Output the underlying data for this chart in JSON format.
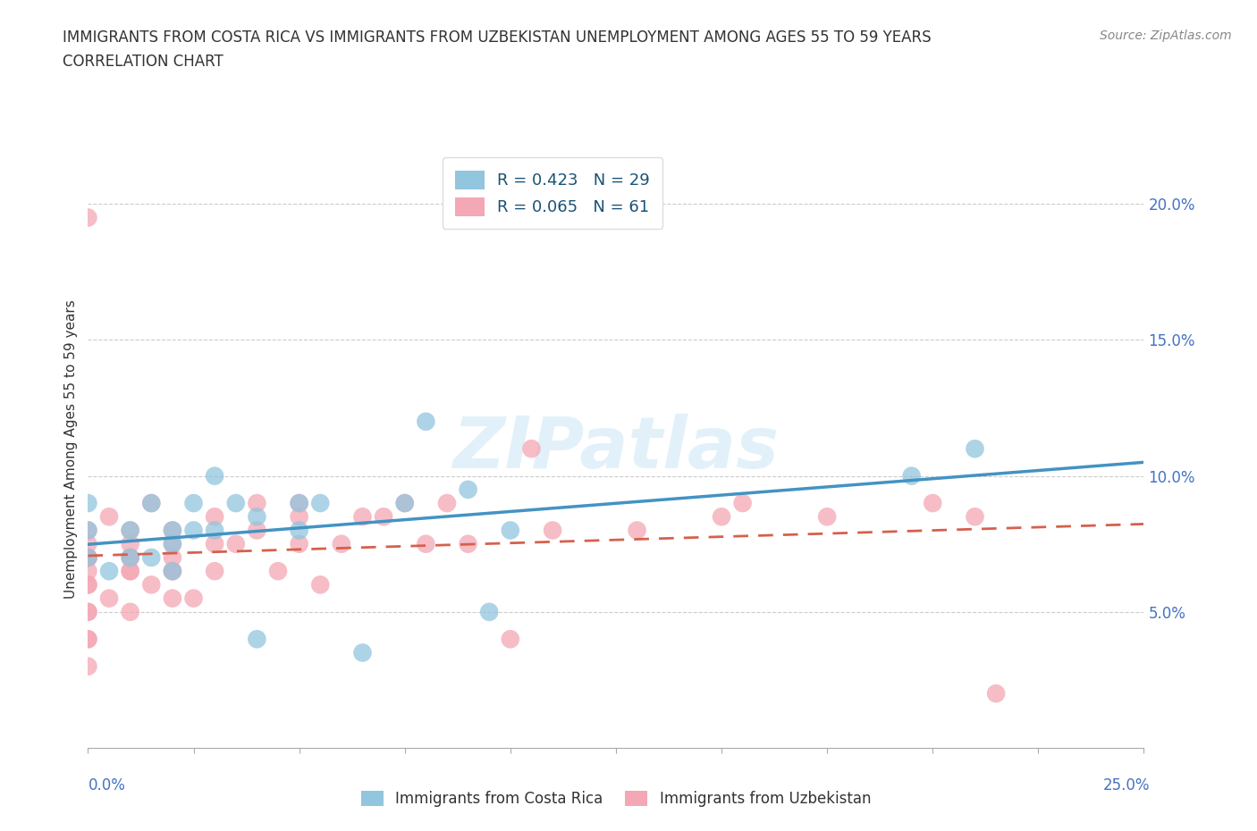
{
  "title_line1": "IMMIGRANTS FROM COSTA RICA VS IMMIGRANTS FROM UZBEKISTAN UNEMPLOYMENT AMONG AGES 55 TO 59 YEARS",
  "title_line2": "CORRELATION CHART",
  "source_text": "Source: ZipAtlas.com",
  "ylabel": "Unemployment Among Ages 55 to 59 years",
  "xlim": [
    0.0,
    0.25
  ],
  "ylim": [
    0.0,
    0.22
  ],
  "yticks": [
    0.05,
    0.1,
    0.15,
    0.2
  ],
  "yticklabels": [
    "5.0%",
    "10.0%",
    "15.0%",
    "20.0%"
  ],
  "xticks": [
    0.0,
    0.025,
    0.05,
    0.075,
    0.1,
    0.125,
    0.15,
    0.175,
    0.2,
    0.225,
    0.25
  ],
  "color_blue": "#92c5de",
  "color_pink": "#f4a7b4",
  "line_blue": "#4393c3",
  "line_pink": "#d6604d",
  "watermark_text": "ZIPatlas",
  "legend1_label": "R = 0.423   N = 29",
  "legend2_label": "R = 0.065   N = 61",
  "bottom_label1": "Immigrants from Costa Rica",
  "bottom_label2": "Immigrants from Uzbekistan",
  "costa_rica_x": [
    0.0,
    0.0,
    0.0,
    0.005,
    0.01,
    0.01,
    0.015,
    0.015,
    0.02,
    0.02,
    0.02,
    0.025,
    0.025,
    0.03,
    0.03,
    0.035,
    0.04,
    0.04,
    0.05,
    0.05,
    0.055,
    0.065,
    0.075,
    0.08,
    0.09,
    0.095,
    0.1,
    0.195,
    0.21
  ],
  "costa_rica_y": [
    0.07,
    0.08,
    0.09,
    0.065,
    0.07,
    0.08,
    0.07,
    0.09,
    0.065,
    0.075,
    0.08,
    0.08,
    0.09,
    0.08,
    0.1,
    0.09,
    0.04,
    0.085,
    0.08,
    0.09,
    0.09,
    0.035,
    0.09,
    0.12,
    0.095,
    0.05,
    0.08,
    0.1,
    0.11
  ],
  "uzbekistan_x": [
    0.0,
    0.0,
    0.0,
    0.0,
    0.0,
    0.0,
    0.0,
    0.0,
    0.0,
    0.0,
    0.0,
    0.0,
    0.0,
    0.0,
    0.0,
    0.005,
    0.005,
    0.01,
    0.01,
    0.01,
    0.01,
    0.01,
    0.01,
    0.01,
    0.015,
    0.015,
    0.02,
    0.02,
    0.02,
    0.02,
    0.02,
    0.02,
    0.025,
    0.03,
    0.03,
    0.03,
    0.035,
    0.04,
    0.04,
    0.045,
    0.05,
    0.05,
    0.05,
    0.055,
    0.06,
    0.065,
    0.07,
    0.075,
    0.08,
    0.085,
    0.09,
    0.1,
    0.105,
    0.11,
    0.13,
    0.15,
    0.155,
    0.175,
    0.2,
    0.21,
    0.215
  ],
  "uzbekistan_y": [
    0.04,
    0.05,
    0.05,
    0.06,
    0.06,
    0.065,
    0.07,
    0.07,
    0.07,
    0.07,
    0.075,
    0.08,
    0.03,
    0.04,
    0.195,
    0.055,
    0.085,
    0.05,
    0.065,
    0.065,
    0.07,
    0.07,
    0.075,
    0.08,
    0.06,
    0.09,
    0.055,
    0.065,
    0.065,
    0.07,
    0.075,
    0.08,
    0.055,
    0.065,
    0.075,
    0.085,
    0.075,
    0.08,
    0.09,
    0.065,
    0.075,
    0.085,
    0.09,
    0.06,
    0.075,
    0.085,
    0.085,
    0.09,
    0.075,
    0.09,
    0.075,
    0.04,
    0.11,
    0.08,
    0.08,
    0.085,
    0.09,
    0.085,
    0.09,
    0.085,
    0.02
  ]
}
